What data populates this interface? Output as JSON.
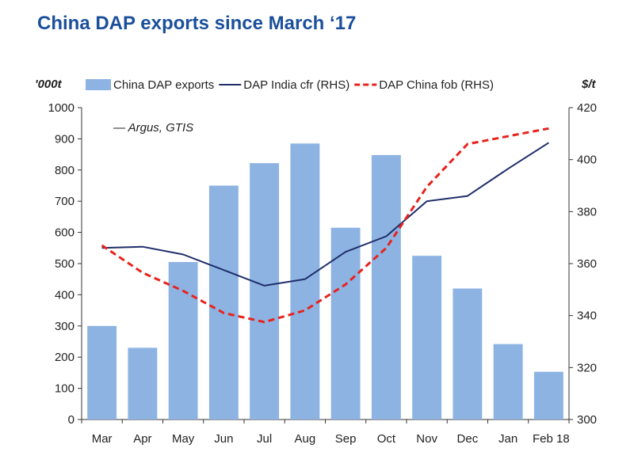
{
  "title": "China DAP exports since March ‘17",
  "source": "— Argus, GTIS",
  "chart_data": {
    "type": "bar",
    "categories": [
      "Mar",
      "Apr",
      "May",
      "Jun",
      "Jul",
      "Aug",
      "Sep",
      "Oct",
      "Nov",
      "Dec",
      "Jan",
      "Feb 18"
    ],
    "left_axis": {
      "label": "'000t",
      "min": 0,
      "max": 1000,
      "step": 100
    },
    "right_axis": {
      "label": "$/t",
      "min": 300,
      "max": 420,
      "step": 20
    },
    "series": [
      {
        "name": "China DAP exports",
        "type": "bar",
        "axis": "left",
        "color": "#8db3e2",
        "values": [
          300,
          230,
          505,
          750,
          822,
          885,
          615,
          848,
          525,
          420,
          242,
          153
        ]
      },
      {
        "name": "DAP India cfr (RHS)",
        "type": "line",
        "axis": "right",
        "color": "#1f2d6b",
        "dash": "solid",
        "values": [
          366,
          366.5,
          363.5,
          357.5,
          351.5,
          354,
          364.5,
          370.5,
          384,
          386,
          396.5,
          406.5
        ]
      },
      {
        "name": "DAP China fob (RHS)",
        "type": "line",
        "axis": "right",
        "color": "#e8231d",
        "dash": "dashed",
        "values": [
          367,
          356.5,
          349.5,
          341,
          337.5,
          342,
          352,
          366,
          389.5,
          406,
          409,
          412
        ]
      }
    ]
  }
}
